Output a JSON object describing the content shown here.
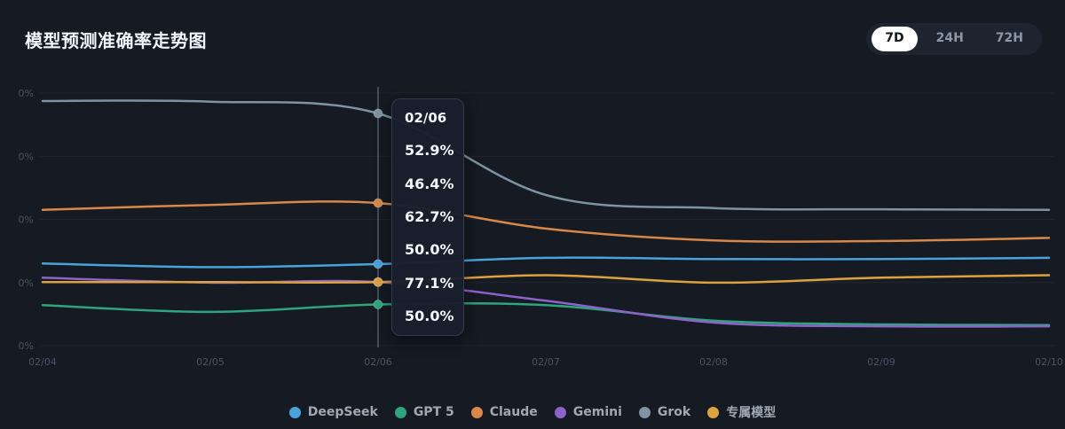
{
  "header": {
    "title": "模型预测准确率走势图"
  },
  "time_range": {
    "options": [
      {
        "label": "7D",
        "active": true
      },
      {
        "label": "24H",
        "active": false
      },
      {
        "label": "72H",
        "active": false
      }
    ]
  },
  "tooltip": {
    "date": "02/06",
    "values": [
      "52.9%",
      "46.4%",
      "62.7%",
      "50.0%",
      "77.1%",
      "50.0%"
    ]
  },
  "chart_data": {
    "type": "line",
    "title": "模型预测准确率走势图",
    "x": [
      "02/04",
      "02/05",
      "02/06",
      "02/07",
      "02/08",
      "02/09",
      "02/10"
    ],
    "y_axis": {
      "tick_labels": [
        "0%",
        "0%",
        "0%",
        "0%",
        "0%"
      ],
      "unit": "%"
    },
    "grid": true,
    "legend_position": "bottom",
    "highlight": {
      "x_index": 2,
      "date": "02/06"
    },
    "series": [
      {
        "id": "deepseek",
        "name": "DeepSeek",
        "color": "#4aa3da",
        "values": [
          53.0,
          52.4,
          52.9,
          53.9,
          53.7,
          53.7,
          53.9
        ]
      },
      {
        "id": "gpt-5",
        "name": "GPT 5",
        "color": "#2ea57e",
        "values": [
          46.3,
          45.2,
          46.4,
          46.3,
          43.8,
          43.2,
          43.1
        ]
      },
      {
        "id": "claude",
        "name": "Claude",
        "color": "#d8884a",
        "values": [
          61.6,
          62.4,
          62.7,
          58.6,
          56.7,
          56.6,
          57.1
        ]
      },
      {
        "id": "gemini",
        "name": "Gemini",
        "color": "#8d63c9",
        "values": [
          50.7,
          49.9,
          50.0,
          47.0,
          43.5,
          42.9,
          42.9
        ]
      },
      {
        "id": "grok",
        "name": "Grok",
        "color": "#7f93a2",
        "values": [
          79.1,
          79.0,
          77.1,
          64.0,
          61.9,
          61.7,
          61.6
        ]
      },
      {
        "id": "exclusive-model",
        "name": "专属模型",
        "color": "#dda13f",
        "values": [
          50.0,
          50.0,
          50.0,
          51.1,
          49.9,
          50.7,
          51.1
        ]
      }
    ]
  },
  "colors": {
    "background": "#151a23",
    "toggle_background": "#1f2530",
    "active_pill": "#ffffff",
    "axis_label": "#4b5464",
    "tooltip_border": "#313b4f"
  }
}
